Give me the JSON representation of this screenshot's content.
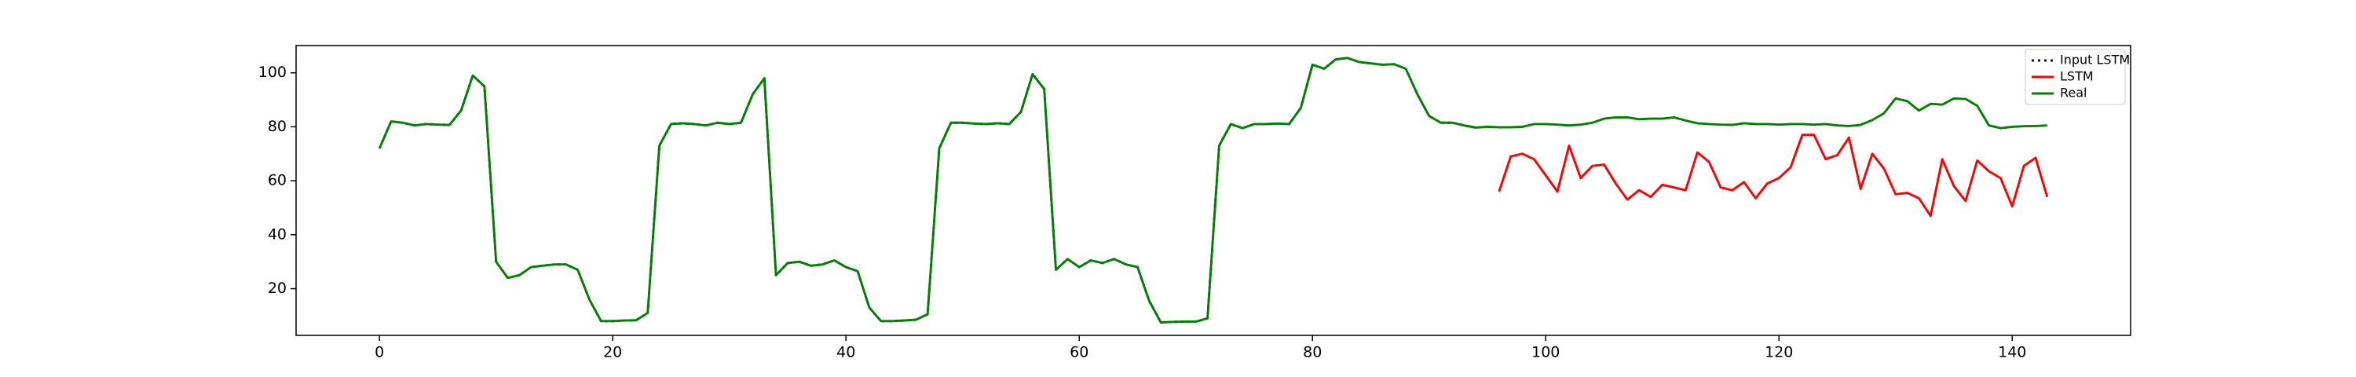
{
  "chart_data": {
    "type": "line",
    "x": [
      0,
      1,
      2,
      3,
      4,
      5,
      6,
      7,
      8,
      9,
      10,
      11,
      12,
      13,
      14,
      15,
      16,
      17,
      18,
      19,
      20,
      21,
      22,
      23,
      24,
      25,
      26,
      27,
      28,
      29,
      30,
      31,
      32,
      33,
      34,
      35,
      36,
      37,
      38,
      39,
      40,
      41,
      42,
      43,
      44,
      45,
      46,
      47,
      48,
      49,
      50,
      51,
      52,
      53,
      54,
      55,
      56,
      57,
      58,
      59,
      60,
      61,
      62,
      63,
      64,
      65,
      66,
      67,
      68,
      69,
      70,
      71,
      72,
      73,
      74,
      75,
      76,
      77,
      78,
      79,
      80,
      81,
      82,
      83,
      84,
      85,
      86,
      87,
      88,
      89,
      90,
      91,
      92,
      93,
      94,
      95,
      96,
      97,
      98,
      99,
      100,
      101,
      102,
      103,
      104,
      105,
      106,
      107,
      108,
      109,
      110,
      111,
      112,
      113,
      114,
      115,
      116,
      117,
      118,
      119,
      120,
      121,
      122,
      123,
      124,
      125,
      126,
      127,
      128,
      129,
      130,
      131,
      132,
      133,
      134,
      135,
      136,
      137,
      138,
      139,
      140,
      141,
      142,
      143
    ],
    "series": [
      {
        "name": "Input LSTM",
        "color": "#00008b",
        "dash": "dotted",
        "values": [
          72,
          82,
          81.5,
          80.5,
          81,
          80.8,
          80.7,
          86,
          99,
          95,
          30,
          24,
          25,
          28,
          28.5,
          29,
          29,
          27,
          16,
          8,
          8,
          8.2,
          8.3,
          11,
          73,
          81,
          81.3,
          81,
          80.5,
          81.5,
          81,
          81.5,
          92,
          98,
          25,
          29.5,
          30,
          28.5,
          29,
          30.5,
          28,
          26.5,
          13,
          8,
          8,
          8.2,
          8.5,
          10.5,
          72,
          81.5,
          81.5,
          81.2,
          81,
          81.3,
          81,
          85.5,
          99.5,
          94,
          27,
          31,
          28,
          30.5,
          29.5,
          31,
          29,
          28,
          15.5,
          7.5,
          7.7,
          7.8,
          7.8,
          9,
          73,
          81,
          79.5,
          81,
          81,
          81.2,
          81,
          87,
          103,
          101.5,
          105,
          105.5,
          104,
          103.5,
          103,
          103.2,
          101.5,
          92,
          84,
          81.5,
          81.5,
          80.5,
          79.7,
          80,
          null,
          null,
          null,
          null,
          null,
          null,
          null,
          null,
          null,
          null,
          null,
          null,
          null,
          null,
          null,
          null,
          null,
          null,
          null,
          null,
          null,
          null,
          null,
          null,
          null,
          null,
          null,
          null,
          null,
          null,
          null,
          null,
          null,
          null,
          null,
          null,
          null,
          null,
          null,
          null,
          null,
          null,
          null,
          null,
          null,
          null,
          null,
          null
        ]
      },
      {
        "name": "LSTM",
        "color": "#ff0000",
        "values": [
          null,
          null,
          null,
          null,
          null,
          null,
          null,
          null,
          null,
          null,
          null,
          null,
          null,
          null,
          null,
          null,
          null,
          null,
          null,
          null,
          null,
          null,
          null,
          null,
          null,
          null,
          null,
          null,
          null,
          null,
          null,
          null,
          null,
          null,
          null,
          null,
          null,
          null,
          null,
          null,
          null,
          null,
          null,
          null,
          null,
          null,
          null,
          null,
          null,
          null,
          null,
          null,
          null,
          null,
          null,
          null,
          null,
          null,
          null,
          null,
          null,
          null,
          null,
          null,
          null,
          null,
          null,
          null,
          null,
          null,
          null,
          null,
          null,
          null,
          null,
          null,
          null,
          null,
          null,
          null,
          null,
          null,
          null,
          null,
          null,
          null,
          null,
          null,
          null,
          null,
          null,
          null,
          null,
          null,
          null,
          null,
          56,
          69,
          70,
          68,
          62,
          56,
          73,
          61,
          65.5,
          66,
          59,
          53,
          56.5,
          54,
          58.5,
          57.5,
          56.5,
          70.5,
          67,
          57.5,
          56.5,
          59.5,
          53.5,
          59,
          61,
          65,
          77,
          77,
          68,
          69.5,
          76,
          57,
          70,
          64.5,
          55,
          55.5,
          53.5,
          47,
          68,
          58,
          52.5,
          67.5,
          63.5,
          61,
          50.5,
          65.5,
          68.5,
          54
        ]
      },
      {
        "name": "Real",
        "color": "#008000",
        "values": [
          72,
          82,
          81.5,
          80.5,
          81,
          80.8,
          80.7,
          86,
          99,
          95,
          30,
          24,
          25,
          28,
          28.5,
          29,
          29,
          27,
          16,
          8,
          8,
          8.2,
          8.3,
          11,
          73,
          81,
          81.3,
          81,
          80.5,
          81.5,
          81,
          81.5,
          92,
          98,
          25,
          29.5,
          30,
          28.5,
          29,
          30.5,
          28,
          26.5,
          13,
          8,
          8,
          8.2,
          8.5,
          10.5,
          72,
          81.5,
          81.5,
          81.2,
          81,
          81.3,
          81,
          85.5,
          99.5,
          94,
          27,
          31,
          28,
          30.5,
          29.5,
          31,
          29,
          28,
          15.5,
          7.5,
          7.7,
          7.8,
          7.8,
          9,
          73,
          81,
          79.5,
          81,
          81,
          81.2,
          81,
          87,
          103,
          101.5,
          105,
          105.5,
          104,
          103.5,
          103,
          103.2,
          101.5,
          92,
          84,
          81.5,
          81.5,
          80.5,
          79.7,
          80,
          79.8,
          79.8,
          80,
          81,
          81,
          80.8,
          80.5,
          80.8,
          81.5,
          83,
          83.5,
          83.5,
          82.8,
          83,
          83,
          83.5,
          82.3,
          81.3,
          81,
          80.8,
          80.7,
          81.3,
          81,
          81,
          80.8,
          81,
          81,
          80.8,
          81,
          80.5,
          80.3,
          80.7,
          82.5,
          85,
          90.5,
          89.5,
          86,
          88.5,
          88.2,
          90.5,
          90.3,
          87.8,
          80.5,
          79.5,
          80,
          80.2,
          80.3,
          80.5
        ]
      }
    ],
    "xlim": [
      -7.15,
      150.15
    ],
    "xticks": [
      0,
      20,
      40,
      60,
      80,
      100,
      120,
      140
    ],
    "ylim": [
      2.7,
      110.1
    ],
    "yticks": [
      20,
      40,
      60,
      80,
      100
    ],
    "legend": "upper right"
  }
}
